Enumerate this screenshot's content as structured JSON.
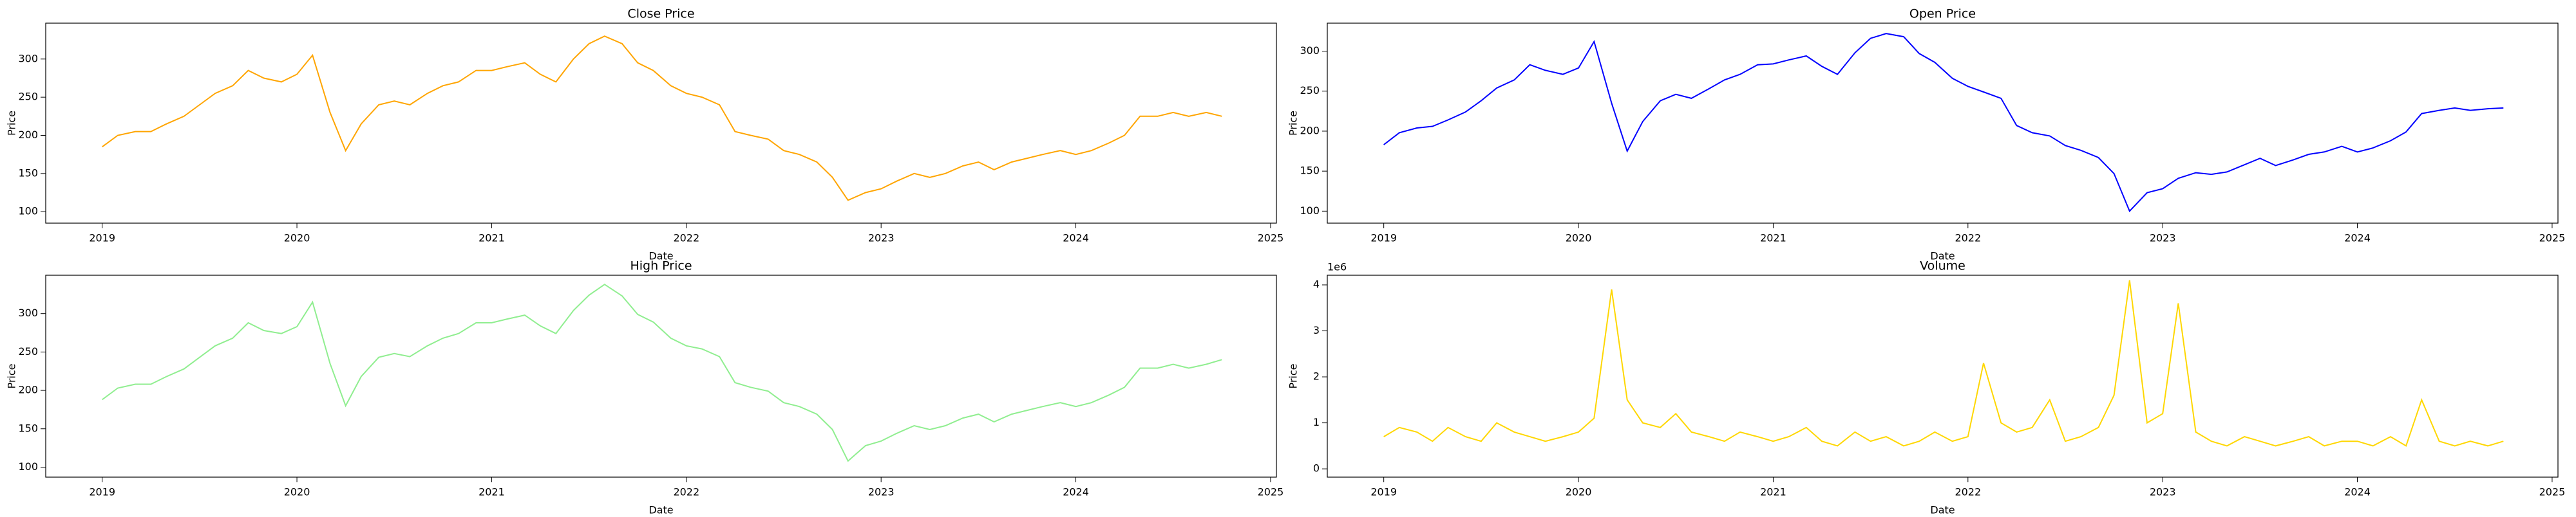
{
  "chart_data": [
    {
      "type": "line",
      "title": "Close Price",
      "x_label": "Date",
      "y_label": "Price",
      "color": "#ffa500",
      "xlim": [
        2018.71,
        2025.03
      ],
      "xticks": [
        2019,
        2020,
        2021,
        2022,
        2023,
        2024,
        2025
      ],
      "ylim": [
        85,
        347
      ],
      "yticks": [
        100,
        150,
        200,
        250,
        300
      ],
      "x": [
        2019.0,
        2019.08,
        2019.17,
        2019.25,
        2019.33,
        2019.42,
        2019.5,
        2019.58,
        2019.67,
        2019.75,
        2019.83,
        2019.92,
        2020.0,
        2020.08,
        2020.17,
        2020.25,
        2020.33,
        2020.42,
        2020.5,
        2020.58,
        2020.67,
        2020.75,
        2020.83,
        2020.92,
        2021.0,
        2021.08,
        2021.17,
        2021.25,
        2021.33,
        2021.42,
        2021.5,
        2021.58,
        2021.67,
        2021.75,
        2021.83,
        2021.92,
        2022.0,
        2022.08,
        2022.17,
        2022.25,
        2022.33,
        2022.42,
        2022.5,
        2022.58,
        2022.67,
        2022.75,
        2022.83,
        2022.92,
        2023.0,
        2023.08,
        2023.17,
        2023.25,
        2023.33,
        2023.42,
        2023.5,
        2023.58,
        2023.67,
        2023.75,
        2023.83,
        2023.92,
        2024.0,
        2024.08,
        2024.17,
        2024.25,
        2024.33,
        2024.42,
        2024.5,
        2024.58,
        2024.67,
        2024.75
      ],
      "values": [
        185,
        200,
        205,
        205,
        215,
        225,
        240,
        255,
        265,
        285,
        275,
        270,
        280,
        305,
        230,
        180,
        215,
        240,
        245,
        240,
        255,
        265,
        270,
        285,
        285,
        290,
        295,
        280,
        270,
        300,
        320,
        330,
        320,
        295,
        285,
        265,
        255,
        250,
        240,
        205,
        200,
        195,
        180,
        175,
        165,
        145,
        115,
        125,
        130,
        140,
        150,
        145,
        150,
        160,
        165,
        155,
        165,
        170,
        175,
        180,
        175,
        180,
        190,
        200,
        225,
        225,
        230,
        225,
        230,
        225
      ]
    },
    {
      "type": "line",
      "title": "Open Price",
      "x_label": "Date",
      "y_label": "Price",
      "color": "#0000ff",
      "xlim": [
        2018.71,
        2025.03
      ],
      "xticks": [
        2019,
        2020,
        2021,
        2022,
        2023,
        2024,
        2025
      ],
      "ylim": [
        85,
        335
      ],
      "yticks": [
        100,
        150,
        200,
        250,
        300
      ],
      "x": [
        2019.0,
        2019.08,
        2019.17,
        2019.25,
        2019.33,
        2019.42,
        2019.5,
        2019.58,
        2019.67,
        2019.75,
        2019.83,
        2019.92,
        2020.0,
        2020.08,
        2020.17,
        2020.25,
        2020.33,
        2020.42,
        2020.5,
        2020.58,
        2020.67,
        2020.75,
        2020.83,
        2020.92,
        2021.0,
        2021.08,
        2021.17,
        2021.25,
        2021.33,
        2021.42,
        2021.5,
        2021.58,
        2021.67,
        2021.75,
        2021.83,
        2021.92,
        2022.0,
        2022.08,
        2022.17,
        2022.25,
        2022.33,
        2022.42,
        2022.5,
        2022.58,
        2022.67,
        2022.75,
        2022.83,
        2022.92,
        2023.0,
        2023.08,
        2023.17,
        2023.25,
        2023.33,
        2023.42,
        2023.5,
        2023.58,
        2023.67,
        2023.75,
        2023.83,
        2023.92,
        2024.0,
        2024.08,
        2024.17,
        2024.25,
        2024.33,
        2024.42,
        2024.5,
        2024.58,
        2024.67,
        2024.75
      ],
      "values": [
        183,
        198,
        204,
        206,
        214,
        224,
        238,
        254,
        264,
        283,
        276,
        271,
        279,
        312,
        235,
        175,
        212,
        238,
        246,
        241,
        253,
        264,
        271,
        283,
        284,
        289,
        294,
        281,
        271,
        298,
        316,
        322,
        318,
        297,
        286,
        266,
        256,
        249,
        241,
        207,
        198,
        194,
        182,
        176,
        167,
        147,
        100,
        123,
        128,
        141,
        148,
        146,
        149,
        158,
        166,
        157,
        164,
        171,
        174,
        181,
        174,
        179,
        188,
        199,
        222,
        226,
        229,
        226,
        228,
        229
      ]
    },
    {
      "type": "line",
      "title": "High Price",
      "x_label": "Date",
      "y_label": "Price",
      "color": "#90ee90",
      "xlim": [
        2018.71,
        2025.03
      ],
      "xticks": [
        2019,
        2020,
        2021,
        2022,
        2023,
        2024,
        2025
      ],
      "ylim": [
        87,
        350
      ],
      "yticks": [
        100,
        150,
        200,
        250,
        300
      ],
      "x": [
        2019.0,
        2019.08,
        2019.17,
        2019.25,
        2019.33,
        2019.42,
        2019.5,
        2019.58,
        2019.67,
        2019.75,
        2019.83,
        2019.92,
        2020.0,
        2020.08,
        2020.17,
        2020.25,
        2020.33,
        2020.42,
        2020.5,
        2020.58,
        2020.67,
        2020.75,
        2020.83,
        2020.92,
        2021.0,
        2021.08,
        2021.17,
        2021.25,
        2021.33,
        2021.42,
        2021.5,
        2021.58,
        2021.67,
        2021.75,
        2021.83,
        2021.92,
        2022.0,
        2022.08,
        2022.17,
        2022.25,
        2022.33,
        2022.42,
        2022.5,
        2022.58,
        2022.67,
        2022.75,
        2022.83,
        2022.92,
        2023.0,
        2023.08,
        2023.17,
        2023.25,
        2023.33,
        2023.42,
        2023.5,
        2023.58,
        2023.67,
        2023.75,
        2023.83,
        2023.92,
        2024.0,
        2024.08,
        2024.17,
        2024.25,
        2024.33,
        2024.42,
        2024.5,
        2024.58,
        2024.67,
        2024.75
      ],
      "values": [
        188,
        203,
        208,
        208,
        218,
        228,
        243,
        258,
        268,
        288,
        278,
        274,
        283,
        315,
        235,
        180,
        218,
        243,
        248,
        244,
        258,
        268,
        274,
        288,
        288,
        293,
        298,
        284,
        274,
        304,
        324,
        338,
        323,
        299,
        289,
        268,
        258,
        254,
        244,
        210,
        204,
        199,
        184,
        179,
        169,
        149,
        108,
        128,
        134,
        144,
        154,
        149,
        154,
        164,
        169,
        159,
        169,
        174,
        179,
        184,
        179,
        184,
        194,
        204,
        229,
        229,
        234,
        229,
        234,
        240
      ]
    },
    {
      "type": "line",
      "title": "Volume",
      "x_label": "Date",
      "y_label": "Price",
      "color": "#ffd700",
      "offset_label": "1e6",
      "xlim": [
        2018.71,
        2025.03
      ],
      "xticks": [
        2019,
        2020,
        2021,
        2022,
        2023,
        2024,
        2025
      ],
      "ylim": [
        -180000,
        4210000
      ],
      "yticks": [
        {
          "value": 0,
          "label": "0"
        },
        {
          "value": 1000000,
          "label": "1"
        },
        {
          "value": 2000000,
          "label": "2"
        },
        {
          "value": 3000000,
          "label": "3"
        },
        {
          "value": 4000000,
          "label": "4"
        }
      ],
      "x": [
        2019.0,
        2019.08,
        2019.17,
        2019.25,
        2019.33,
        2019.42,
        2019.5,
        2019.58,
        2019.67,
        2019.75,
        2019.83,
        2019.92,
        2020.0,
        2020.08,
        2020.17,
        2020.25,
        2020.33,
        2020.42,
        2020.5,
        2020.58,
        2020.67,
        2020.75,
        2020.83,
        2020.92,
        2021.0,
        2021.08,
        2021.17,
        2021.25,
        2021.33,
        2021.42,
        2021.5,
        2021.58,
        2021.67,
        2021.75,
        2021.83,
        2021.92,
        2022.0,
        2022.08,
        2022.17,
        2022.25,
        2022.33,
        2022.42,
        2022.5,
        2022.58,
        2022.67,
        2022.75,
        2022.83,
        2022.92,
        2023.0,
        2023.08,
        2023.17,
        2023.25,
        2023.33,
        2023.42,
        2023.5,
        2023.58,
        2023.67,
        2023.75,
        2023.83,
        2023.92,
        2024.0,
        2024.08,
        2024.17,
        2024.25,
        2024.33,
        2024.42,
        2024.5,
        2024.58,
        2024.67,
        2024.75
      ],
      "values": [
        700000,
        900000,
        800000,
        600000,
        900000,
        700000,
        600000,
        1000000,
        800000,
        700000,
        600000,
        700000,
        800000,
        1100000,
        3900000,
        1500000,
        1000000,
        900000,
        1200000,
        800000,
        700000,
        600000,
        800000,
        700000,
        600000,
        700000,
        900000,
        600000,
        500000,
        800000,
        600000,
        700000,
        500000,
        600000,
        800000,
        600000,
        700000,
        2300000,
        1000000,
        800000,
        900000,
        1500000,
        600000,
        700000,
        900000,
        1600000,
        4100000,
        1000000,
        1200000,
        3600000,
        800000,
        600000,
        500000,
        700000,
        600000,
        500000,
        600000,
        700000,
        500000,
        600000,
        600000,
        500000,
        700000,
        500000,
        1500000,
        600000,
        500000,
        600000,
        500000,
        600000
      ]
    }
  ]
}
